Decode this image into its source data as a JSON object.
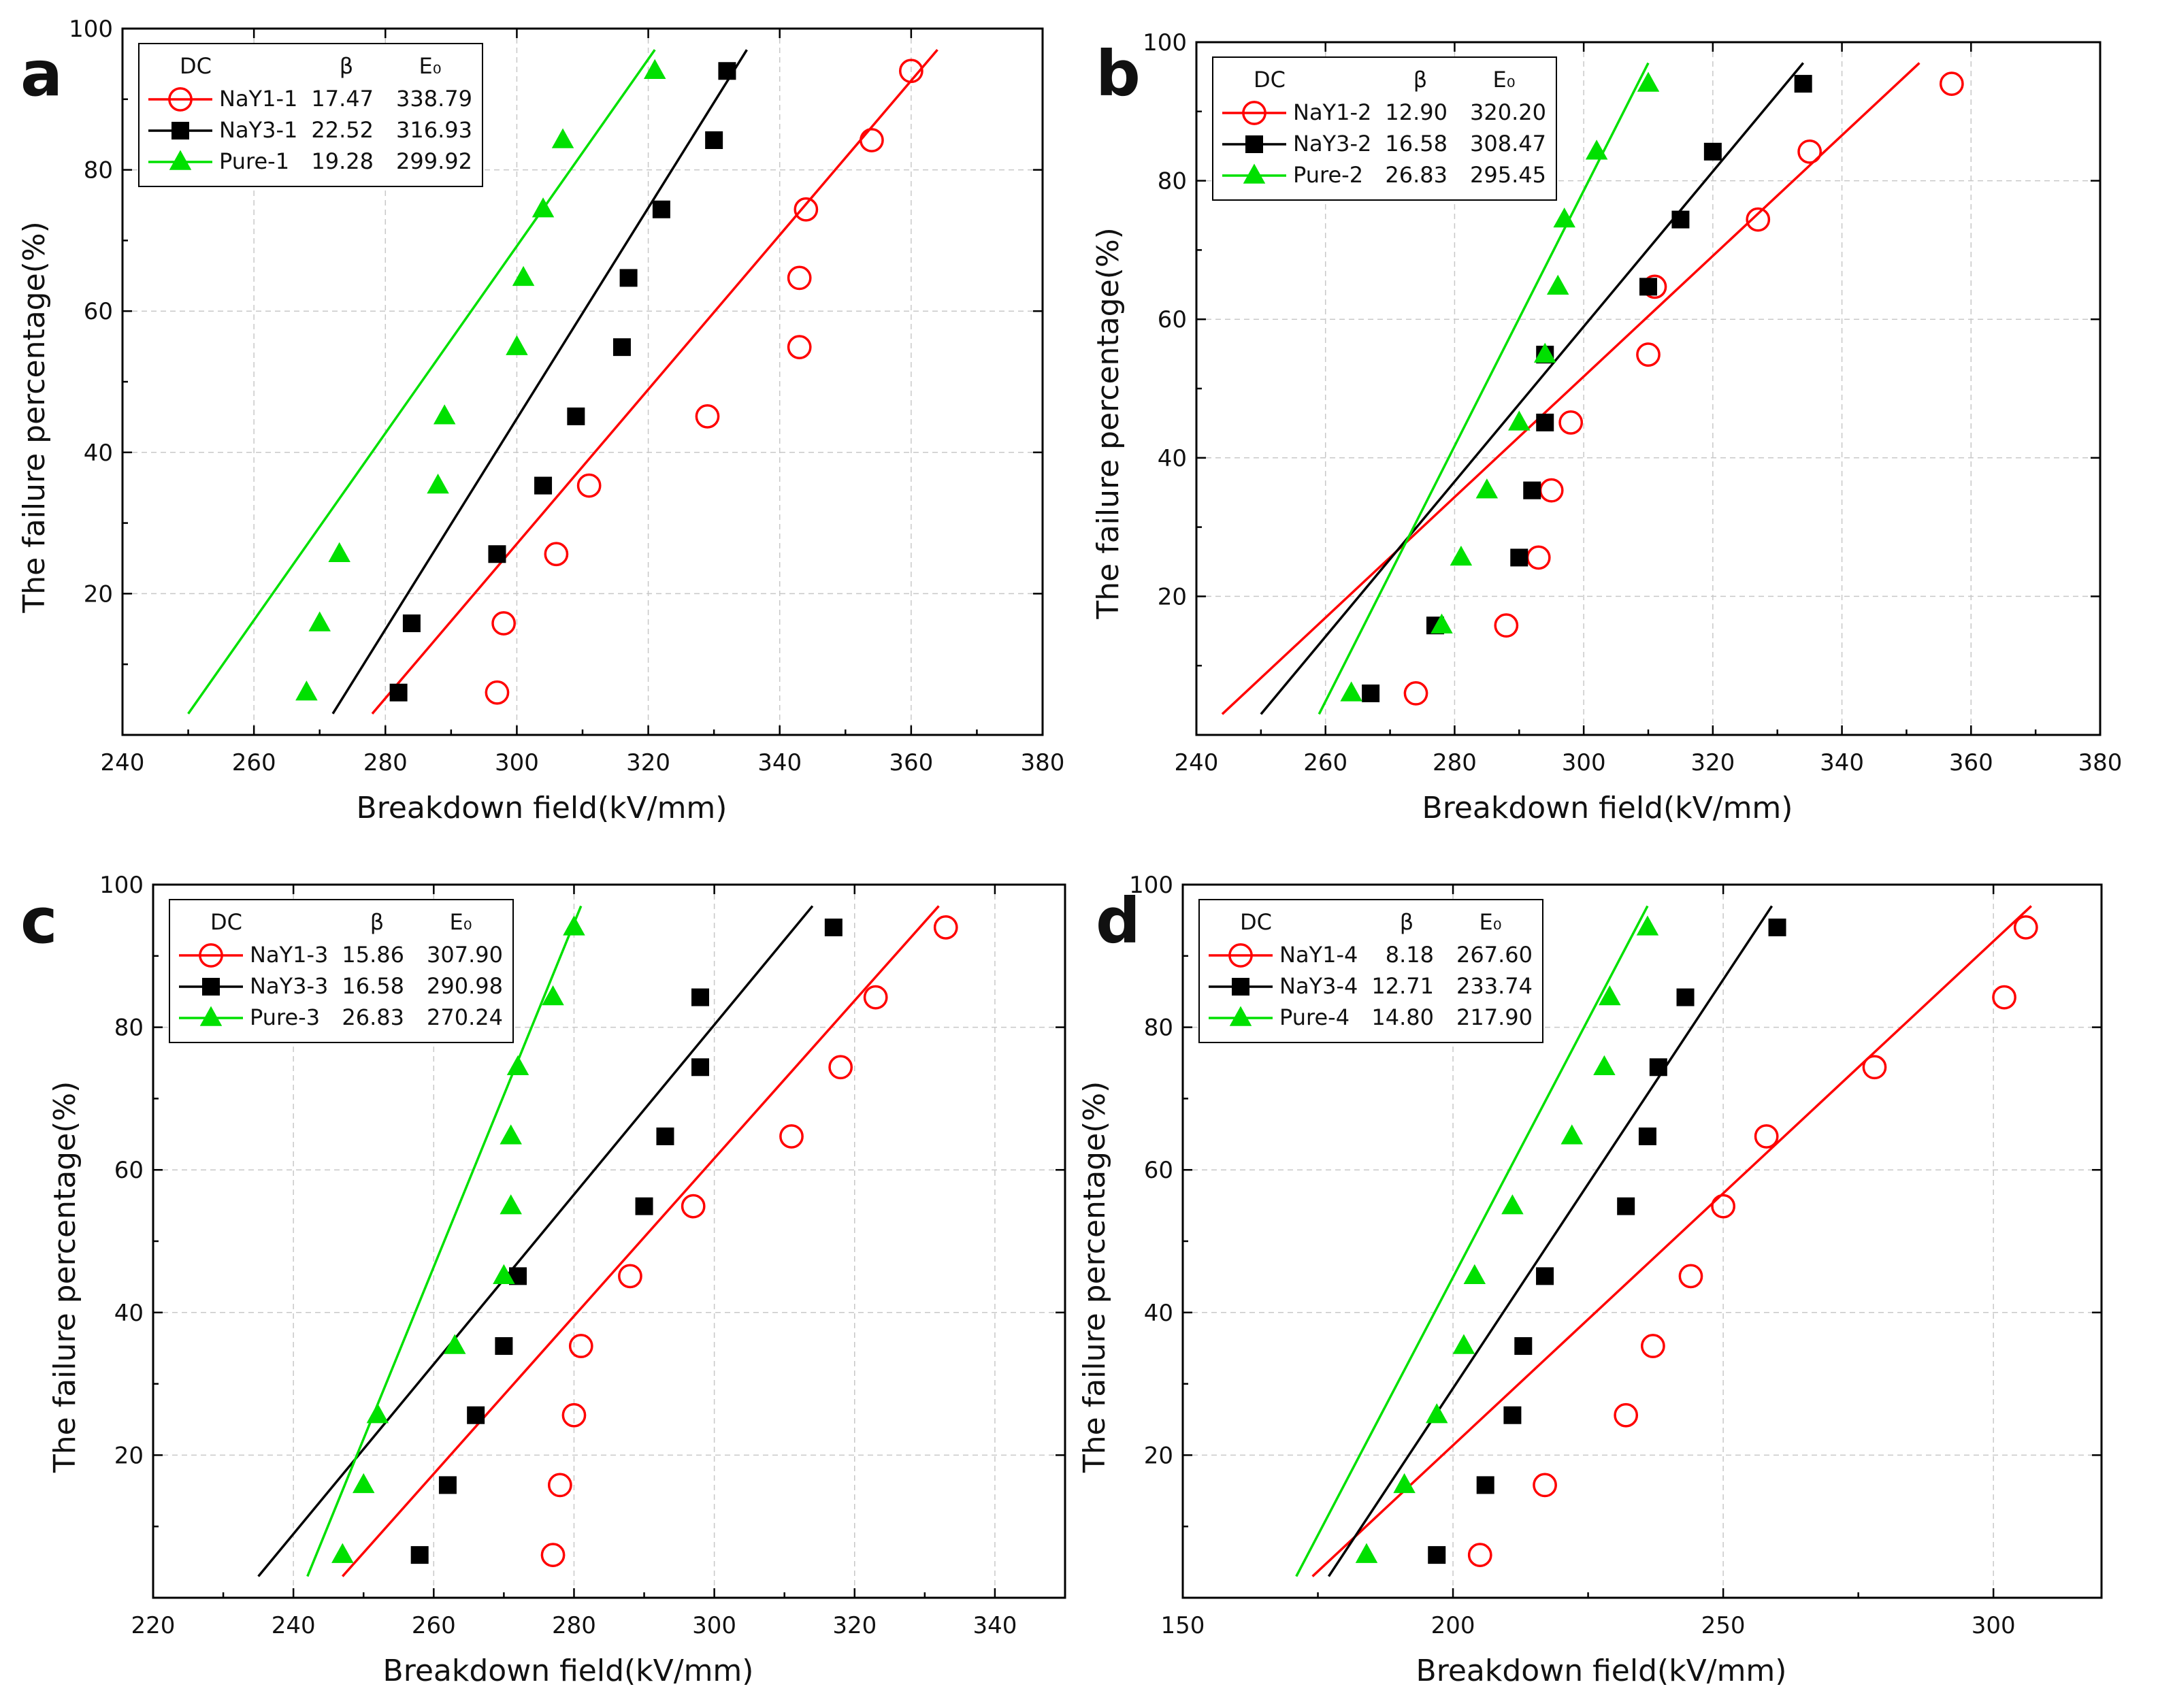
{
  "figure": {
    "panels": [
      "a",
      "b",
      "c",
      "d"
    ]
  },
  "series_style": {
    "NaY1": {
      "color": "#ff0000",
      "marker": "circle-open-icon"
    },
    "NaY3": {
      "color": "#000000",
      "marker": "square-filled-icon"
    },
    "Pure": {
      "color": "#00e000",
      "marker": "triangle-filled-icon"
    }
  },
  "chart_data": [
    {
      "type": "scatter",
      "panel_label": "a",
      "xlabel": "Breakdown field(kV/mm)",
      "ylabel": "The failure percentage(%)",
      "xlim": [
        240,
        380
      ],
      "ylim": [
        0,
        100
      ],
      "xticks": [
        240,
        260,
        280,
        300,
        320,
        340,
        360,
        380
      ],
      "yticks": [
        20,
        40,
        60,
        80,
        100
      ],
      "legend": {
        "position": "top-left",
        "head_dc": "DC",
        "head_beta": "β",
        "head_e0": "E₀"
      },
      "series": [
        {
          "name": "NaY1-1",
          "key": "NaY1",
          "beta": "17.47",
          "e0": "338.79",
          "x": [
            297,
            298,
            306,
            311,
            329,
            343,
            343,
            344,
            354,
            360
          ],
          "y": [
            6,
            15.8,
            25.6,
            35.3,
            45.1,
            54.9,
            64.7,
            74.4,
            84.2,
            94
          ],
          "fit": [
            [
              278,
              3
            ],
            [
              364,
              97
            ]
          ]
        },
        {
          "name": "NaY3-1",
          "key": "NaY3",
          "beta": "22.52",
          "e0": "316.93",
          "x": [
            282,
            284,
            297,
            304,
            309,
            316,
            317,
            322,
            330,
            332
          ],
          "y": [
            6,
            15.8,
            25.6,
            35.3,
            45.1,
            54.9,
            64.7,
            74.4,
            84.2,
            94
          ],
          "fit": [
            [
              272,
              3
            ],
            [
              335,
              97
            ]
          ]
        },
        {
          "name": "Pure-1",
          "key": "Pure",
          "beta": "19.28",
          "e0": "299.92",
          "x": [
            268,
            270,
            273,
            288,
            289,
            300,
            301,
            304,
            307,
            321
          ],
          "y": [
            6,
            15.8,
            25.6,
            35.3,
            45.1,
            54.9,
            64.7,
            74.4,
            84.2,
            94
          ],
          "fit": [
            [
              250,
              3
            ],
            [
              321,
              97
            ]
          ]
        }
      ]
    },
    {
      "type": "scatter",
      "panel_label": "b",
      "xlabel": "Breakdown field(kV/mm)",
      "ylabel": "The failure percentage(%)",
      "xlim": [
        240,
        380
      ],
      "ylim": [
        0,
        100
      ],
      "xticks": [
        240,
        260,
        280,
        300,
        320,
        340,
        360,
        380
      ],
      "yticks": [
        20,
        40,
        60,
        80,
        100
      ],
      "legend": {
        "position": "top-left",
        "head_dc": "DC",
        "head_beta": "β",
        "head_e0": "E₀"
      },
      "series": [
        {
          "name": "NaY1-2",
          "key": "NaY1",
          "beta": "12.90",
          "e0": "320.20",
          "x": [
            274,
            288,
            293,
            295,
            298,
            310,
            311,
            327,
            335,
            357
          ],
          "y": [
            6,
            15.8,
            25.6,
            35.3,
            45.1,
            54.9,
            64.7,
            74.4,
            84.2,
            94
          ],
          "fit": [
            [
              244,
              3
            ],
            [
              352,
              97
            ]
          ]
        },
        {
          "name": "NaY3-2",
          "key": "NaY3",
          "beta": "16.58",
          "e0": "308.47",
          "x": [
            267,
            277,
            290,
            292,
            294,
            294,
            310,
            315,
            320,
            334
          ],
          "y": [
            6,
            15.8,
            25.6,
            35.3,
            45.1,
            54.9,
            64.7,
            74.4,
            84.2,
            94
          ],
          "fit": [
            [
              250,
              3
            ],
            [
              334,
              97
            ]
          ]
        },
        {
          "name": "Pure-2",
          "key": "Pure",
          "beta": "26.83",
          "e0": "295.45",
          "x": [
            264,
            278,
            281,
            285,
            290,
            294,
            296,
            297,
            302,
            310
          ],
          "y": [
            6,
            15.8,
            25.6,
            35.3,
            45.1,
            54.9,
            64.7,
            74.4,
            84.2,
            94
          ],
          "fit": [
            [
              259,
              3
            ],
            [
              310,
              97
            ]
          ]
        }
      ]
    },
    {
      "type": "scatter",
      "panel_label": "c",
      "xlabel": "Breakdown field(kV/mm)",
      "ylabel": "The failure percentage(%)",
      "xlim": [
        220,
        350
      ],
      "ylim": [
        0,
        100
      ],
      "xticks": [
        220,
        240,
        260,
        280,
        300,
        320,
        340
      ],
      "yticks": [
        20,
        40,
        60,
        80,
        100
      ],
      "legend": {
        "position": "top-left",
        "head_dc": "DC",
        "head_beta": "β",
        "head_e0": "E₀"
      },
      "series": [
        {
          "name": "NaY1-3",
          "key": "NaY1",
          "beta": "15.86",
          "e0": "307.90",
          "x": [
            277,
            278,
            280,
            281,
            288,
            297,
            311,
            318,
            323,
            333
          ],
          "y": [
            6,
            15.8,
            25.6,
            35.3,
            45.1,
            54.9,
            64.7,
            74.4,
            84.2,
            94
          ],
          "fit": [
            [
              247,
              3
            ],
            [
              332,
              97
            ]
          ]
        },
        {
          "name": "NaY3-3",
          "key": "NaY3",
          "beta": "16.58",
          "e0": "290.98",
          "x": [
            258,
            262,
            266,
            270,
            272,
            290,
            293,
            298,
            298,
            317
          ],
          "y": [
            6,
            15.8,
            25.6,
            35.3,
            45.1,
            54.9,
            64.7,
            74.4,
            84.2,
            94
          ],
          "fit": [
            [
              235,
              3
            ],
            [
              314,
              97
            ]
          ]
        },
        {
          "name": "Pure-3",
          "key": "Pure",
          "beta": "26.83",
          "e0": "270.24",
          "x": [
            247,
            250,
            252,
            263,
            270,
            271,
            271,
            272,
            277,
            280
          ],
          "y": [
            6,
            15.8,
            25.6,
            35.3,
            45.1,
            54.9,
            64.7,
            74.4,
            84.2,
            94
          ],
          "fit": [
            [
              242,
              3
            ],
            [
              281,
              97
            ]
          ]
        }
      ]
    },
    {
      "type": "scatter",
      "panel_label": "d",
      "xlabel": "Breakdown field(kV/mm)",
      "ylabel": "The failure percentage(%)",
      "xlim": [
        150,
        320
      ],
      "ylim": [
        0,
        100
      ],
      "xticks": [
        150,
        200,
        250,
        300
      ],
      "yticks": [
        20,
        40,
        60,
        80,
        100
      ],
      "legend": {
        "position": "top-left",
        "head_dc": "DC",
        "head_beta": "β",
        "head_e0": "E₀"
      },
      "series": [
        {
          "name": "NaY1-4",
          "key": "NaY1",
          "beta": "8.18",
          "e0": "267.60",
          "x": [
            205,
            217,
            232,
            237,
            244,
            250,
            258,
            278,
            302,
            306
          ],
          "y": [
            6,
            15.8,
            25.6,
            35.3,
            45.1,
            54.9,
            64.7,
            74.4,
            84.2,
            94
          ],
          "fit": [
            [
              174,
              3
            ],
            [
              307,
              97
            ]
          ]
        },
        {
          "name": "NaY3-4",
          "key": "NaY3",
          "beta": "12.71",
          "e0": "233.74",
          "x": [
            197,
            206,
            211,
            213,
            217,
            232,
            236,
            238,
            243,
            260
          ],
          "y": [
            6,
            15.8,
            25.6,
            35.3,
            45.1,
            54.9,
            64.7,
            74.4,
            84.2,
            94
          ],
          "fit": [
            [
              177,
              3
            ],
            [
              259,
              97
            ]
          ]
        },
        {
          "name": "Pure-4",
          "key": "Pure",
          "beta": "14.80",
          "e0": "217.90",
          "x": [
            184,
            191,
            197,
            202,
            204,
            211,
            222,
            228,
            229,
            236
          ],
          "y": [
            6,
            15.8,
            25.6,
            35.3,
            45.1,
            54.9,
            64.7,
            74.4,
            84.2,
            94
          ],
          "fit": [
            [
              171,
              3
            ],
            [
              236,
              97
            ]
          ]
        }
      ]
    }
  ]
}
